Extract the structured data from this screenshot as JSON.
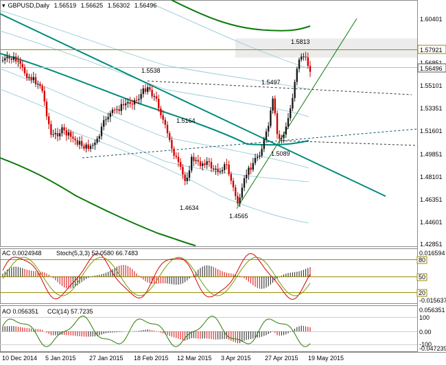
{
  "header": {
    "symbol": "GBPUSD,Daily",
    "open": "1.56519",
    "high": "1.56625",
    "low": "1.56302",
    "close": "1.56496"
  },
  "main": {
    "price_axis": [
      "1.60401",
      "1.57921",
      "1.56851",
      "1.56496",
      "1.55101",
      "1.53351",
      "1.51601",
      "1.49851",
      "1.48101",
      "1.46351",
      "1.44601",
      "1.42851"
    ],
    "current_price": "1.56496",
    "level_price": "1.57921",
    "annotations": [
      "1.5813",
      "1.5538",
      "1.5497",
      "1.5164",
      "1.5089",
      "1.4634",
      "1.4565"
    ]
  },
  "ac_panel": {
    "title": "AC 0.0024948",
    "stoch": "Stoch(5,3,3) 52.0580 66.7483",
    "axis": [
      "0.016594",
      "80",
      "50",
      "20",
      "-0.015637"
    ]
  },
  "ao_panel": {
    "title": "AO 0.056351",
    "cci": "CCI(14) 57.7235",
    "axis": [
      "0.056351",
      "100",
      "0.00",
      "-100",
      "-0.047239"
    ]
  },
  "time_axis": [
    "10 Dec 2014",
    "5 Jan 2015",
    "27 Jan 2015",
    "18 Feb 2015",
    "12 Mar 2015",
    "3 Apr 2015",
    "27 Apr 2015",
    "19 May 2015"
  ],
  "colors": {
    "bull": "#1a1a1a",
    "bear": "#d40000",
    "channel": "#008b7b",
    "envelope": "#0a7a0a",
    "band": "#9fd0dc",
    "level": "#9a8a00"
  }
}
